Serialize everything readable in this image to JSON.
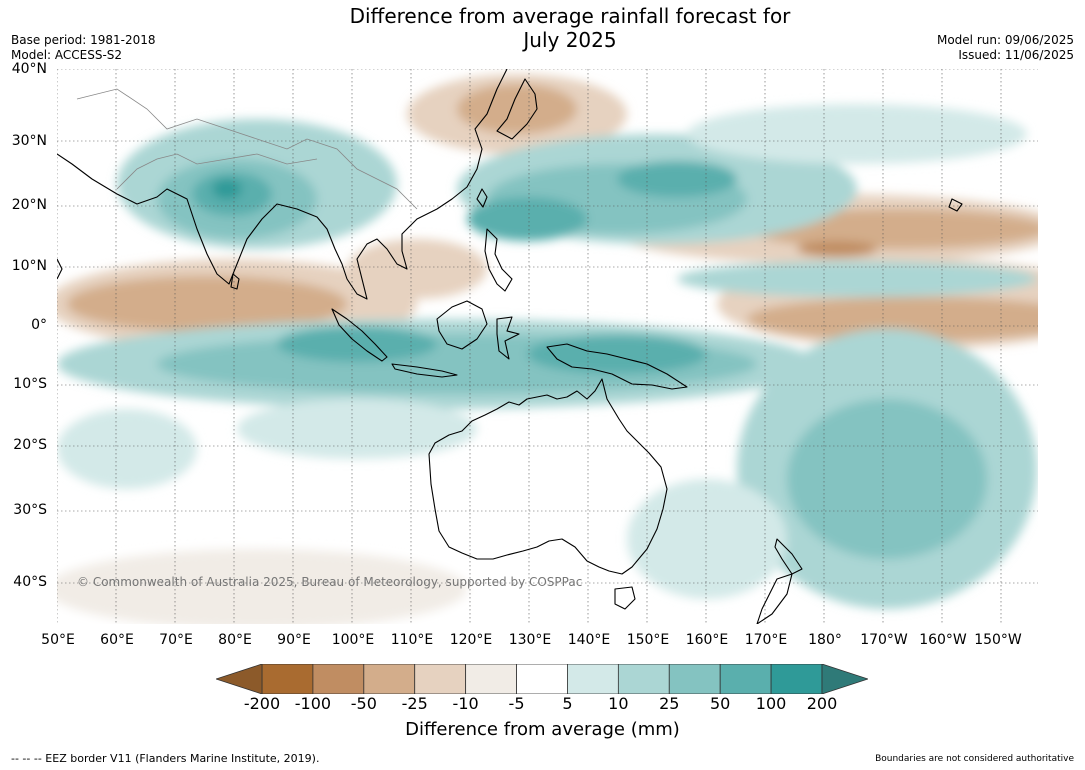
{
  "title": "Difference from average rainfall forecast for\nJuly 2025",
  "title_line1": "Difference from average rainfall forecast for",
  "title_line2": "July 2025",
  "meta_left": [
    "Base period: 1981-2018",
    "Model: ACCESS-S2"
  ],
  "meta_right": [
    "Model run: 09/06/2025",
    "Issued: 11/06/2025"
  ],
  "lat_labels": [
    "40°N",
    "30°N",
    "20°N",
    "10°N",
    "0°",
    "10°S",
    "20°S",
    "30°S",
    "40°S"
  ],
  "lon_labels": [
    "50°E",
    "60°E",
    "70°E",
    "80°E",
    "90°E",
    "100°E",
    "110°E",
    "120°E",
    "130°E",
    "140°E",
    "150°E",
    "160°E",
    "170°E",
    "180°",
    "170°W",
    "160°W",
    "150°W"
  ],
  "colorbar": {
    "ticks": [
      "-200",
      "-100",
      "-50",
      "-25",
      "-10",
      "-5",
      "5",
      "10",
      "25",
      "50",
      "100",
      "200"
    ],
    "colors": [
      "#a96b30",
      "#c08d62",
      "#d3ad8b",
      "#e6d2c0",
      "#f1ece6",
      "#ffffff",
      "#d3e9e8",
      "#abd6d4",
      "#84c3c1",
      "#5aafad",
      "#2f9a98"
    ],
    "low_end_color": "#8c5a2a",
    "high_end_color": "#2f7a78",
    "label": "Difference from average (mm)"
  },
  "copyright": "© Commonwealth of Australia 2025, Bureau of Meteorology, supported by COSPPac",
  "footer_left": "--  --  -- EEZ border V11 (Flanders Marine Institute, 2019).",
  "footer_right": "Boundaries are not considered authoritative"
}
